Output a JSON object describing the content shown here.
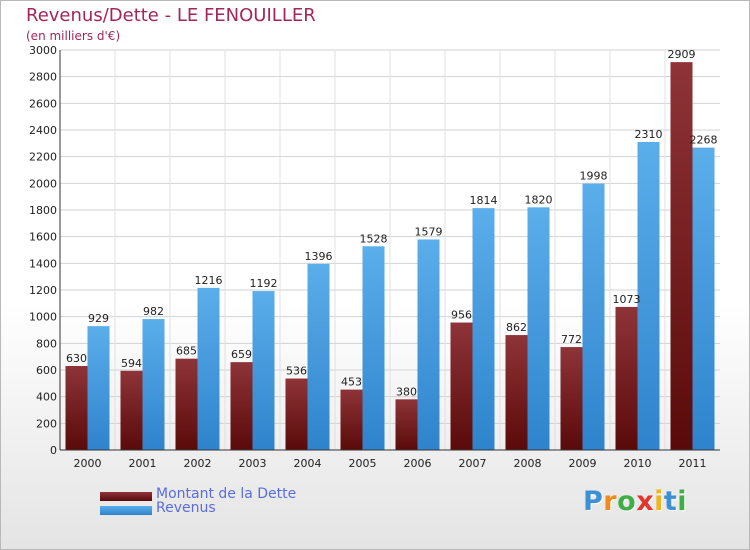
{
  "header": {
    "title": "Revenus/Dette - LE FENOUILLER",
    "subtitle": "(en milliers d'€)"
  },
  "legend": {
    "items": [
      {
        "label": "Montant de la Dette",
        "color": "#7a1a1a"
      },
      {
        "label": "Revenus",
        "color": "#4a9ee3"
      }
    ]
  },
  "logo": {
    "letters": [
      "P",
      "r",
      "o",
      "x",
      "i",
      "t",
      "i"
    ]
  },
  "chart_data": {
    "type": "bar",
    "title": "Revenus/Dette - LE FENOUILLER",
    "ylabel": "(en milliers d'€)",
    "xlabel": "",
    "ylim": [
      0,
      3000
    ],
    "yticks": [
      0,
      200,
      400,
      600,
      800,
      1000,
      1200,
      1400,
      1600,
      1800,
      2000,
      2200,
      2400,
      2600,
      2800,
      3000
    ],
    "grid": true,
    "categories": [
      "2000",
      "2001",
      "2002",
      "2003",
      "2004",
      "2005",
      "2006",
      "2007",
      "2008",
      "2009",
      "2010",
      "2011"
    ],
    "series": [
      {
        "name": "Montant de la Dette",
        "color": "#7a1a1a",
        "values": [
          630,
          594,
          685,
          659,
          536,
          453,
          380,
          956,
          862,
          772,
          1073,
          2909
        ]
      },
      {
        "name": "Revenus",
        "color": "#4a9ee3",
        "values": [
          929,
          982,
          1216,
          1192,
          1396,
          1528,
          1579,
          1814,
          1820,
          1998,
          2310,
          2268
        ]
      }
    ]
  }
}
